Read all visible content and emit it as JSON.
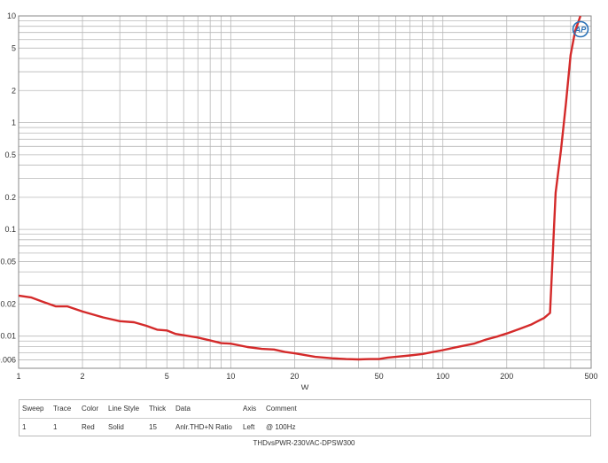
{
  "chart_data": {
    "type": "line",
    "xscale": "log",
    "yscale": "log",
    "xlim": [
      1,
      500
    ],
    "ylim": [
      0.005,
      10
    ],
    "grid": true,
    "xlabel": "W",
    "ylabel": "",
    "x_ticks": [
      1,
      2,
      5,
      10,
      20,
      50,
      100,
      200,
      500
    ],
    "x_tick_labels": [
      "1",
      "2",
      "5",
      "10",
      "20",
      "50",
      "100",
      "200",
      "500"
    ],
    "y_ticks": [
      0.006,
      0.01,
      0.02,
      0.05,
      0.1,
      0.2,
      0.5,
      1,
      2,
      5,
      10
    ],
    "y_tick_labels": [
      "0.006",
      "0.01",
      "0.02",
      "0.05",
      "0.1",
      "0.2",
      "0.5",
      "1",
      "2",
      "5",
      "10"
    ],
    "series": [
      {
        "color": "#d42a2a",
        "points": [
          [
            1,
            0.024
          ],
          [
            1.15,
            0.023
          ],
          [
            1.3,
            0.021
          ],
          [
            1.5,
            0.019
          ],
          [
            1.7,
            0.019
          ],
          [
            2,
            0.017
          ],
          [
            2.5,
            0.015
          ],
          [
            3,
            0.0138
          ],
          [
            3.5,
            0.0135
          ],
          [
            4,
            0.0125
          ],
          [
            4.5,
            0.0115
          ],
          [
            5,
            0.0113
          ],
          [
            5.5,
            0.0105
          ],
          [
            6,
            0.0102
          ],
          [
            7,
            0.0097
          ],
          [
            8,
            0.0091
          ],
          [
            9,
            0.0086
          ],
          [
            10,
            0.0085
          ],
          [
            12,
            0.0079
          ],
          [
            14,
            0.0076
          ],
          [
            16,
            0.0075
          ],
          [
            18,
            0.0071
          ],
          [
            20,
            0.0069
          ],
          [
            25,
            0.0064
          ],
          [
            30,
            0.0062
          ],
          [
            35,
            0.0061
          ],
          [
            40,
            0.00605
          ],
          [
            45,
            0.0061
          ],
          [
            50,
            0.0061
          ],
          [
            55,
            0.0063
          ],
          [
            60,
            0.0064
          ],
          [
            70,
            0.0066
          ],
          [
            80,
            0.0068
          ],
          [
            90,
            0.0071
          ],
          [
            100,
            0.0074
          ],
          [
            120,
            0.008
          ],
          [
            140,
            0.0085
          ],
          [
            160,
            0.0093
          ],
          [
            180,
            0.0099
          ],
          [
            200,
            0.0106
          ],
          [
            230,
            0.0117
          ],
          [
            260,
            0.0128
          ],
          [
            280,
            0.0138
          ],
          [
            300,
            0.0148
          ],
          [
            320,
            0.0165
          ],
          [
            340,
            0.22
          ],
          [
            360,
            0.55
          ],
          [
            380,
            1.5
          ],
          [
            400,
            4.3
          ],
          [
            420,
            7.2
          ],
          [
            445,
            10.5
          ]
        ]
      }
    ]
  },
  "legend_table": {
    "headers": [
      "Sweep",
      "Trace",
      "Color",
      "Line Style",
      "Thick",
      "Data",
      "Axis",
      "Comment"
    ],
    "row": [
      "1",
      "1",
      "Red",
      "Solid",
      "15",
      "Anlr.THD+N Ratio",
      "Left",
      "@ 100Hz"
    ]
  },
  "footer": "THDvsPWR-230VAC-DPSW300",
  "logo_icon": "ap-logo-icon",
  "logo_text": "AP"
}
